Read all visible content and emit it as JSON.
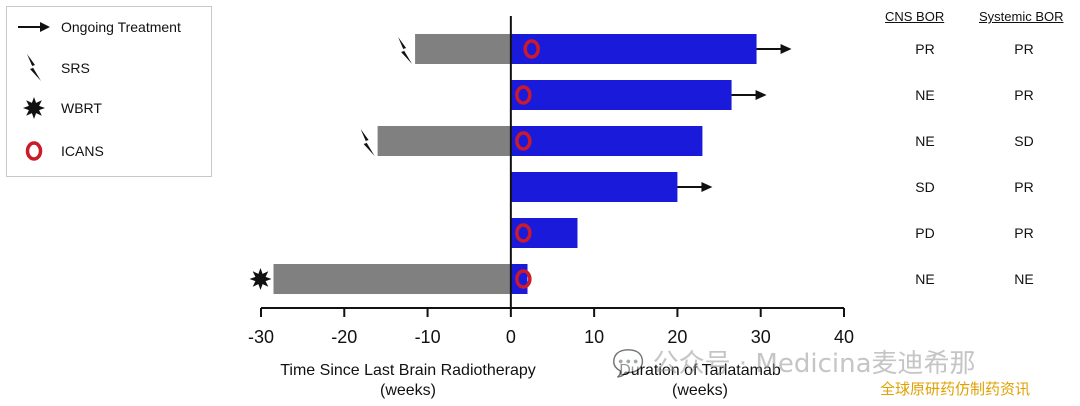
{
  "legend": {
    "items": [
      {
        "label": "Ongoing Treatment",
        "icon": "arrow-right-icon"
      },
      {
        "label": "SRS",
        "icon": "lightning-bolt-icon"
      },
      {
        "label": "WBRT",
        "icon": "starburst-icon"
      },
      {
        "label": "ICANS",
        "icon": "red-ring-icon"
      }
    ]
  },
  "columns": {
    "cns_header": "CNS BOR",
    "systemic_header": "Systemic BOR"
  },
  "rows": [
    {
      "cns": "PR",
      "systemic": "PR"
    },
    {
      "cns": "NE",
      "systemic": "PR"
    },
    {
      "cns": "NE",
      "systemic": "SD"
    },
    {
      "cns": "SD",
      "systemic": "PR"
    },
    {
      "cns": "PD",
      "systemic": "PR"
    },
    {
      "cns": "NE",
      "systemic": "NE"
    }
  ],
  "axis": {
    "left_title_line1": "Time Since Last Brain Radiotherapy",
    "left_title_line2": "(weeks)",
    "right_title_line1": "Duration of Tarlatamab",
    "right_title_line2": "(weeks)"
  },
  "watermark": {
    "text": "💬 公众号 · Medicina麦迪希那",
    "subtext": "全球原研药仿制药资讯"
  },
  "colors": {
    "radiotherapy_bar": "#808080",
    "tarlatamab_bar": "#1a1adb",
    "icans_ring": "#cc1a2a"
  },
  "chart_data": {
    "type": "bar",
    "orientation": "horizontal",
    "xlim": [
      -30,
      40
    ],
    "xticks": [
      -30,
      -20,
      -10,
      0,
      10,
      20,
      30,
      40
    ],
    "series": [
      {
        "name": "Time Since Last Brain Radiotherapy",
        "values": [
          -11.5,
          0,
          -16,
          0,
          0,
          -28.5
        ]
      },
      {
        "name": "Duration of Tarlatamab",
        "values": [
          29.5,
          26.5,
          23,
          20,
          8,
          2
        ]
      }
    ],
    "ongoing_treatment": [
      true,
      true,
      false,
      true,
      false,
      false
    ],
    "prior_radiotherapy": [
      "SRS",
      null,
      "SRS",
      null,
      null,
      "WBRT"
    ],
    "icans_week": [
      2.5,
      1.5,
      1.5,
      null,
      1.5,
      1.5
    ]
  }
}
